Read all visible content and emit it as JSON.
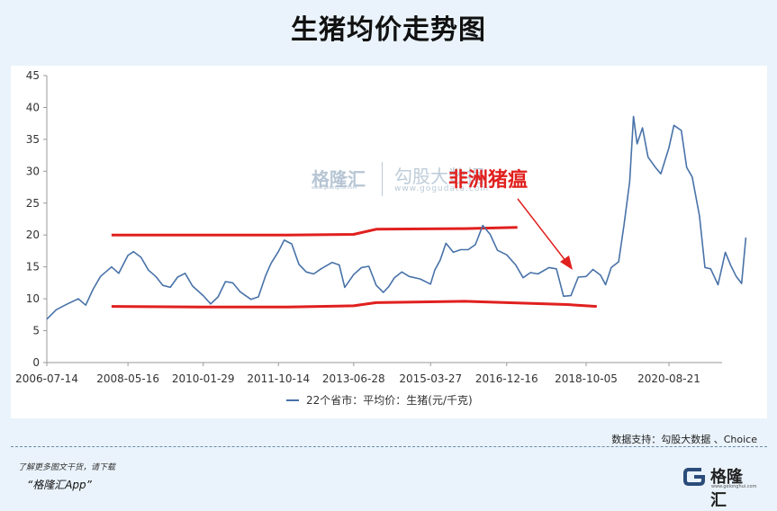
{
  "page": {
    "title": "生猪均价走势图",
    "source": "数据支持：勾股大数据 、Choice",
    "promo_line1": "了解更多图文干货，请下载",
    "promo_line2": "“格隆汇App”",
    "brand": {
      "name": "格隆汇",
      "sub": "www.gelonghui.com"
    },
    "watermark": {
      "name": "格隆汇",
      "sub": "www.gelonghui.com",
      "name2": "勾股大数据",
      "sub2": "www.gogudata.com"
    },
    "annotation": "非洲猪瘟",
    "colors": {
      "series": "#4872a8",
      "bands": "#e0201e",
      "arrow": "#e0201e",
      "background": "#eaf3fb"
    }
  },
  "chart_data": {
    "type": "line",
    "legend_position": "bottom",
    "x_ticks": [
      "2006-07-14",
      "2008-05-16",
      "2010-01-29",
      "2011-10-14",
      "2013-06-28",
      "2015-03-27",
      "2016-12-16",
      "2018-10-05",
      "2020-08-21"
    ],
    "ylim": [
      0,
      45
    ],
    "y_ticks": [
      0,
      5,
      10,
      15,
      20,
      25,
      30,
      35,
      40,
      45
    ],
    "series": [
      {
        "name": "22个省市：平均价：生猪(元/千克)",
        "x": [
          "2006-07-14",
          "2006-10-01",
          "2007-01-01",
          "2007-04-01",
          "2007-06-01",
          "2007-08-01",
          "2007-10-01",
          "2008-01-01",
          "2008-03-01",
          "2008-05-16",
          "2008-07-01",
          "2008-09-01",
          "2008-11-01",
          "2009-01-01",
          "2009-03-01",
          "2009-05-01",
          "2009-07-01",
          "2009-09-01",
          "2009-11-01",
          "2010-01-29",
          "2010-04-01",
          "2010-06-01",
          "2010-08-01",
          "2010-10-01",
          "2010-12-01",
          "2011-03-01",
          "2011-05-01",
          "2011-07-01",
          "2011-08-15",
          "2011-10-14",
          "2011-12-01",
          "2012-02-01",
          "2012-04-01",
          "2012-06-01",
          "2012-08-01",
          "2012-10-01",
          "2013-01-01",
          "2013-03-01",
          "2013-04-15",
          "2013-06-28",
          "2013-09-01",
          "2013-11-01",
          "2014-01-01",
          "2014-03-01",
          "2014-04-15",
          "2014-06-01",
          "2014-08-01",
          "2014-10-01",
          "2015-01-01",
          "2015-03-27",
          "2015-05-01",
          "2015-06-15",
          "2015-08-01",
          "2015-10-01",
          "2015-12-01",
          "2016-02-01",
          "2016-04-01",
          "2016-06-01",
          "2016-08-01",
          "2016-10-01",
          "2016-12-16",
          "2017-03-01",
          "2017-05-01",
          "2017-07-01",
          "2017-09-01",
          "2017-12-01",
          "2018-02-01",
          "2018-04-01",
          "2018-06-01",
          "2018-08-01",
          "2018-10-05",
          "2018-12-01",
          "2019-02-01",
          "2019-03-15",
          "2019-05-01",
          "2019-07-01",
          "2019-08-15",
          "2019-10-01",
          "2019-11-01",
          "2019-12-01",
          "2020-01-15",
          "2020-03-01",
          "2020-05-01",
          "2020-06-15",
          "2020-08-21",
          "2020-10-01",
          "2020-12-01",
          "2021-01-15",
          "2021-03-01",
          "2021-05-01",
          "2021-06-15",
          "2021-08-01",
          "2021-10-01",
          "2021-12-01",
          "2022-01-15",
          "2022-03-01",
          "2022-04-15",
          "2022-05-20"
        ],
        "values": [
          6.8,
          8.3,
          9.2,
          10,
          9,
          11.5,
          13.5,
          15,
          14,
          16.8,
          17.4,
          16.5,
          14.5,
          13.5,
          12.1,
          11.8,
          13.4,
          14,
          12,
          10.5,
          9.2,
          10.3,
          12.7,
          12.5,
          11.1,
          9.9,
          10.3,
          13.7,
          15.6,
          17.4,
          19.2,
          18.6,
          15.4,
          14.2,
          13.9,
          14.7,
          15.7,
          15.3,
          11.8,
          13.8,
          14.9,
          15.1,
          12.1,
          11.0,
          11.9,
          13.3,
          14.2,
          13.5,
          13.1,
          12.3,
          14.5,
          16.1,
          18.7,
          17.3,
          17.7,
          17.7,
          18.5,
          21.5,
          20.1,
          17.6,
          16.9,
          15.3,
          13.3,
          14.1,
          13.9,
          14.9,
          14.7,
          10.4,
          10.5,
          13.4,
          13.5,
          14.6,
          13.7,
          12.2,
          14.9,
          15.8,
          21.6,
          28.4,
          38.6,
          34.3,
          36.8,
          32.2,
          30.6,
          29.6,
          33.7,
          37.2,
          36.4,
          30.6,
          29.1,
          23,
          14.9,
          14.7,
          12.2,
          17.3,
          15.2,
          13.5,
          12.4,
          19.6
        ]
      }
    ],
    "reference_lines": [
      {
        "x": [
          "2008-01-01",
          "2010-01-01",
          "2012-01-01",
          "2013-06-28",
          "2014-01-01",
          "2016-01-01",
          "2017-03-15"
        ],
        "values": [
          20,
          20,
          20,
          20.1,
          20.9,
          21,
          21.2
        ]
      },
      {
        "x": [
          "2008-01-01",
          "2010-01-01",
          "2012-01-01",
          "2013-06-28",
          "2014-01-01",
          "2016-01-01",
          "2018-05-01",
          "2019-01-01"
        ],
        "values": [
          8.8,
          8.7,
          8.7,
          8.9,
          9.4,
          9.6,
          9.1,
          8.8
        ]
      }
    ]
  }
}
